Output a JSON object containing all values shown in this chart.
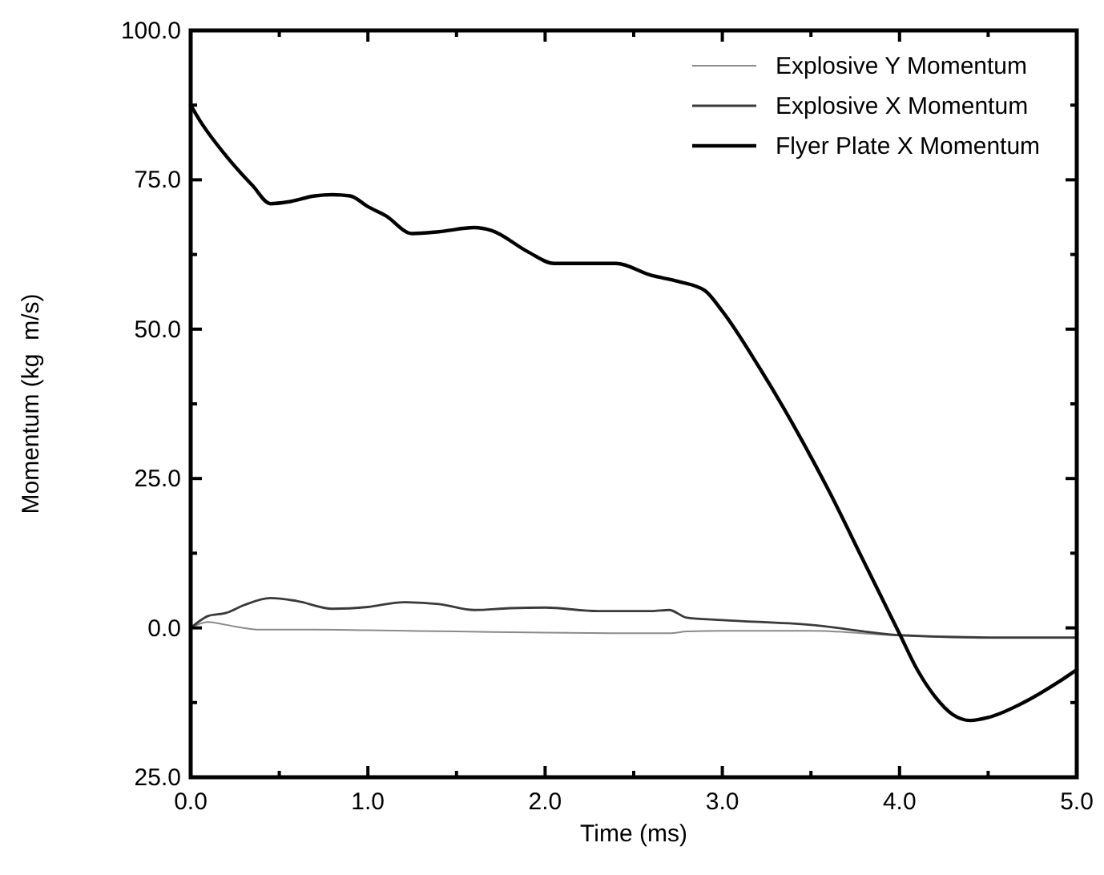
{
  "chart_data": {
    "type": "line",
    "xlabel": "Time (ms)",
    "ylabel": "Momentum (kg  m/s)",
    "xlim": [
      0,
      5
    ],
    "ylim": [
      -25,
      100
    ],
    "xticks": [
      {
        "value": 0,
        "label": "0.0"
      },
      {
        "value": 0.5,
        "label": null
      },
      {
        "value": 1,
        "label": "1.0"
      },
      {
        "value": 1.5,
        "label": null
      },
      {
        "value": 2,
        "label": "2.0"
      },
      {
        "value": 2.5,
        "label": null
      },
      {
        "value": 3,
        "label": "3.0"
      },
      {
        "value": 3.5,
        "label": null
      },
      {
        "value": 4,
        "label": "4.0"
      },
      {
        "value": 4.5,
        "label": null
      },
      {
        "value": 5,
        "label": "5.0"
      }
    ],
    "yticks": [
      {
        "value": -25,
        "label": "25.0"
      },
      {
        "value": -12.5,
        "label": null
      },
      {
        "value": 0,
        "label": "0.0"
      },
      {
        "value": 12.5,
        "label": null
      },
      {
        "value": 25,
        "label": "25.0"
      },
      {
        "value": 37.5,
        "label": null
      },
      {
        "value": 50,
        "label": "50.0"
      },
      {
        "value": 62.5,
        "label": null
      },
      {
        "value": 75,
        "label": "75.0"
      },
      {
        "value": 87.5,
        "label": null
      },
      {
        "value": 100,
        "label": "100.0"
      }
    ],
    "grid": false,
    "legend": "top right",
    "line_style": "solid",
    "marker": "none",
    "series": [
      {
        "name": "Explosive Y Momentum",
        "color": "#8a8a8a",
        "x": [
          0,
          0.1,
          0.2,
          0.4,
          0.7,
          1,
          1.5,
          2,
          2.5,
          2.7,
          2.8,
          3,
          3.5,
          4,
          4.5,
          5
        ],
        "values": [
          0,
          1,
          0.5,
          -0.3,
          -0.3,
          -0.4,
          -0.6,
          -0.8,
          -0.9,
          -0.9,
          -0.6,
          -0.5,
          -0.5,
          -1.3,
          -1.7,
          -1.7
        ]
      },
      {
        "name": "Explosive X Momentum",
        "color": "#3a3a3a",
        "x": [
          0,
          0.1,
          0.2,
          0.3,
          0.45,
          0.6,
          0.8,
          1,
          1.2,
          1.4,
          1.6,
          1.8,
          2,
          2.3,
          2.6,
          2.7,
          2.8,
          3,
          3.5,
          4,
          4.5,
          5
        ],
        "values": [
          0,
          2,
          2.5,
          3.8,
          5,
          4.5,
          3.2,
          3.5,
          4.3,
          4,
          3,
          3.3,
          3.4,
          2.8,
          2.8,
          3,
          1.7,
          1.3,
          0.5,
          -1.2,
          -1.6,
          -1.6
        ]
      },
      {
        "name": "Flyer Plate X Momentum",
        "color": "#000000",
        "x": [
          0,
          0.05,
          0.2,
          0.35,
          0.45,
          0.55,
          0.7,
          0.8,
          0.9,
          1,
          1.1,
          1.25,
          1.4,
          1.6,
          1.7,
          1.9,
          2.05,
          2.2,
          2.4,
          2.6,
          2.75,
          2.9,
          3,
          3.2,
          3.4,
          3.6,
          3.8,
          4,
          4.1,
          4.2,
          4.3,
          4.4,
          4.5,
          4.7,
          4.9,
          5
        ],
        "values": [
          87.5,
          85,
          79,
          74,
          71,
          71.3,
          72.3,
          72.5,
          72.3,
          70.5,
          69,
          66,
          66.3,
          67,
          66.5,
          63,
          61,
          61,
          61,
          59,
          58,
          56.5,
          53,
          44,
          34,
          23,
          11,
          -1,
          -7,
          -11.5,
          -14.5,
          -15.5,
          -15,
          -12.5,
          -9,
          -7
        ]
      }
    ]
  }
}
